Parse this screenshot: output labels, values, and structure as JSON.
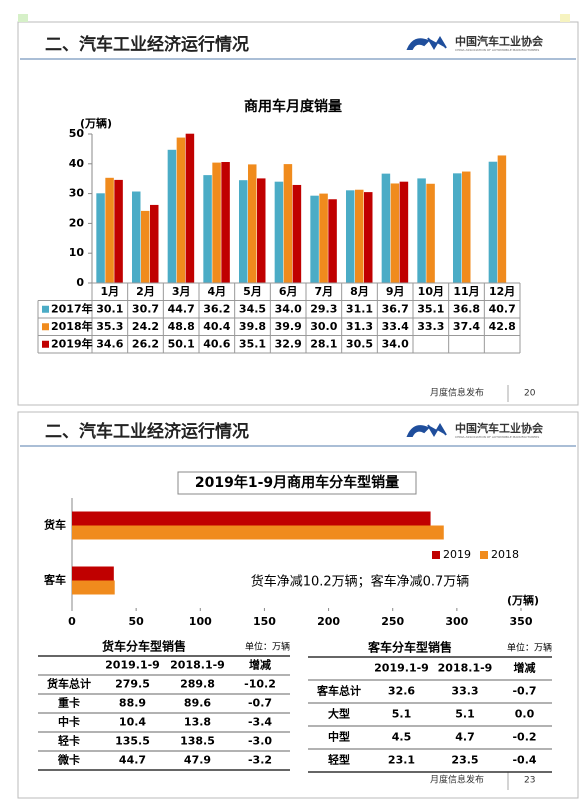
{
  "slides": [
    {
      "header": "二、汽车工业经济运行情况",
      "logo": {
        "name": "中国汽车工业协会",
        "subtitle": "CHINA ASSOCIATION OF AUTOMOBILE MANUFACTURERS"
      },
      "footer": "月度信息发布",
      "page": "20"
    },
    {
      "header": "二、汽车工业经济运行情况",
      "logo": {
        "name": "中国汽车工业协会",
        "subtitle": "CHINA ASSOCIATION OF AUTOMOBILE MANUFACTURERS"
      },
      "footer": "月度信息发布",
      "page": "23"
    }
  ],
  "chart_data": [
    {
      "type": "bar",
      "title": "商用车月度销量",
      "y_label": "(万辆)",
      "categories": [
        "1月",
        "2月",
        "3月",
        "4月",
        "5月",
        "6月",
        "7月",
        "8月",
        "9月",
        "10月",
        "11月",
        "12月"
      ],
      "series": [
        {
          "name": "2017年",
          "color": "#4bacc6",
          "values": [
            30.1,
            30.7,
            44.7,
            36.2,
            34.5,
            34.0,
            29.3,
            31.1,
            36.7,
            35.1,
            36.8,
            40.7
          ],
          "value_labels": [
            "30.1",
            "30.7",
            "44.7",
            "36.2",
            "34.5",
            "34.0",
            "29.3",
            "31.1",
            "36.7",
            "35.1",
            "36.8",
            "40.7"
          ]
        },
        {
          "name": "2018年",
          "color": "#f08b1d",
          "values": [
            35.3,
            24.2,
            48.8,
            40.4,
            39.8,
            39.9,
            30.0,
            31.3,
            33.4,
            33.3,
            37.4,
            42.8
          ],
          "value_labels": [
            "35.3",
            "24.2",
            "48.8",
            "40.4",
            "39.8",
            "39.9",
            "30.0",
            "31.3",
            "33.4",
            "33.3",
            "37.4",
            "42.8"
          ]
        },
        {
          "name": "2019年",
          "color": "#c00000",
          "values": [
            34.6,
            26.2,
            50.1,
            40.6,
            35.1,
            32.9,
            28.1,
            30.5,
            34.0,
            null,
            null,
            null
          ],
          "value_labels": [
            "34.6",
            "26.2",
            "50.1",
            "40.6",
            "35.1",
            "32.9",
            "28.1",
            "30.5",
            "34.0",
            null,
            null,
            null
          ]
        }
      ],
      "ylim": [
        0,
        50
      ],
      "yticks": [
        0,
        10,
        20,
        30,
        40,
        50
      ],
      "grid": false
    },
    {
      "type": "hbar",
      "title": "2019年1-9月商用车分车型销量",
      "x_label": "(万辆)",
      "annotation": "货车净减10.2万辆；客车净减0.7万辆",
      "categories": [
        "货车",
        "客车"
      ],
      "series": [
        {
          "name": "2019",
          "color": "#c00000",
          "values": [
            279.5,
            32.6
          ]
        },
        {
          "name": "2018",
          "color": "#f08b1d",
          "values": [
            289.8,
            33.3
          ]
        }
      ],
      "xlim": [
        0,
        350
      ],
      "xticks": [
        0,
        50,
        100,
        150,
        200,
        250,
        300,
        350
      ],
      "grid": false
    }
  ],
  "tables": [
    {
      "title": "货车分车型销售",
      "unit": "单位：万辆",
      "columns": [
        "2019.1-9",
        "2018.1-9",
        "增减"
      ],
      "rows": [
        [
          "货车总计",
          "279.5",
          "289.8",
          "-10.2"
        ],
        [
          "重卡",
          "88.9",
          "89.6",
          "-0.7"
        ],
        [
          "中卡",
          "10.4",
          "13.8",
          "-3.4"
        ],
        [
          "轻卡",
          "135.5",
          "138.5",
          "-3.0"
        ],
        [
          "微卡",
          "44.7",
          "47.9",
          "-3.2"
        ]
      ]
    },
    {
      "title": "客车分车型销售",
      "unit": "单位：万辆",
      "columns": [
        "2019.1-9",
        "2018.1-9",
        "增减"
      ],
      "rows": [
        [
          "客车总计",
          "32.6",
          "33.3",
          "-0.7"
        ],
        [
          "大型",
          "5.1",
          "5.1",
          "0.0"
        ],
        [
          "中型",
          "4.5",
          "4.7",
          "-0.2"
        ],
        [
          "轻型",
          "23.1",
          "23.5",
          "-0.4"
        ]
      ]
    }
  ]
}
